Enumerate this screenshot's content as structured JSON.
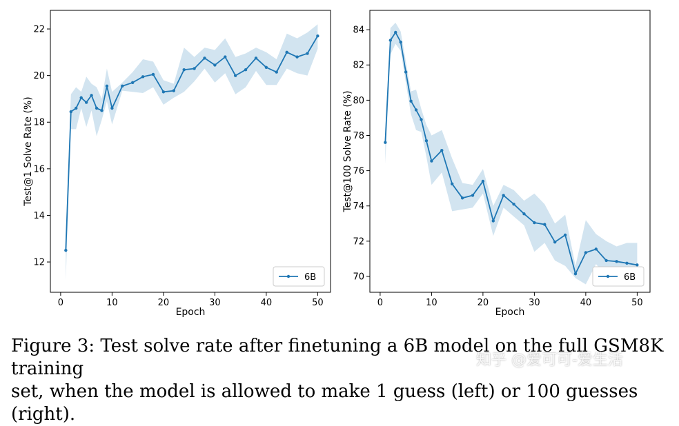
{
  "colors": {
    "line": "#1f77b4",
    "band": "#1f77b4"
  },
  "chart_data": [
    {
      "type": "line",
      "xlabel": "Epoch",
      "ylabel": "Test@1 Solve Rate (%)",
      "xlim": [
        -2,
        52.5
      ],
      "ylim": [
        10.7,
        22.8
      ],
      "xticks": [
        0,
        10,
        20,
        30,
        40,
        50
      ],
      "yticks": [
        12,
        14,
        16,
        18,
        20,
        22
      ],
      "legend_position": "lower right",
      "grid": false,
      "series": [
        {
          "name": "6B",
          "x": [
            1,
            2,
            3,
            4,
            5,
            6,
            7,
            8,
            9,
            10,
            12,
            14,
            16,
            18,
            20,
            22,
            24,
            26,
            28,
            30,
            32,
            34,
            36,
            38,
            40,
            42,
            44,
            46,
            48,
            50
          ],
          "values": [
            12.5,
            18.45,
            18.6,
            19.05,
            18.85,
            19.15,
            18.6,
            18.5,
            19.55,
            18.6,
            19.55,
            19.7,
            19.95,
            20.05,
            19.3,
            19.35,
            20.25,
            20.3,
            20.75,
            20.45,
            20.8,
            20.0,
            20.25,
            20.75,
            20.35,
            20.15,
            21.0,
            20.8,
            20.95,
            21.7
          ],
          "lower": [
            11.2,
            17.7,
            17.7,
            18.6,
            17.8,
            18.5,
            17.4,
            18.1,
            18.9,
            17.9,
            19.35,
            19.3,
            19.25,
            19.5,
            18.75,
            19.05,
            19.3,
            19.75,
            20.3,
            19.7,
            20.1,
            19.2,
            19.5,
            20.2,
            19.6,
            19.6,
            20.3,
            20.1,
            20.0,
            21.15
          ],
          "upper": [
            13.2,
            19.2,
            19.5,
            19.3,
            19.95,
            19.65,
            19.5,
            19.0,
            20.3,
            19.3,
            19.7,
            20.15,
            20.7,
            20.6,
            19.8,
            19.65,
            21.2,
            20.8,
            21.2,
            21.1,
            21.6,
            20.8,
            20.95,
            21.2,
            21.0,
            20.7,
            21.8,
            21.6,
            21.85,
            22.2
          ]
        }
      ]
    },
    {
      "type": "line",
      "xlabel": "Epoch",
      "ylabel": "Test@100 Solve Rate (%)",
      "xlim": [
        -2,
        52.5
      ],
      "ylim": [
        69.1,
        85.1
      ],
      "xticks": [
        0,
        10,
        20,
        30,
        40,
        50
      ],
      "yticks": [
        70,
        72,
        74,
        76,
        78,
        80,
        82,
        84
      ],
      "legend_position": "lower right",
      "grid": false,
      "series": [
        {
          "name": "6B",
          "x": [
            1,
            2,
            3,
            4,
            5,
            6,
            7,
            8,
            9,
            10,
            12,
            14,
            16,
            18,
            20,
            22,
            24,
            26,
            28,
            30,
            32,
            34,
            36,
            38,
            40,
            42,
            44,
            46,
            48,
            50
          ],
          "values": [
            77.6,
            83.4,
            83.85,
            83.3,
            81.6,
            79.95,
            79.45,
            78.9,
            77.7,
            76.55,
            77.15,
            75.25,
            74.45,
            74.6,
            75.4,
            73.15,
            74.6,
            74.1,
            73.55,
            73.05,
            72.95,
            71.95,
            72.35,
            70.15,
            71.35,
            71.55,
            70.9,
            70.85,
            70.75,
            70.65
          ],
          "lower": [
            76.4,
            82.6,
            83.2,
            82.8,
            81.0,
            79.2,
            78.3,
            78.2,
            76.8,
            75.2,
            75.9,
            73.7,
            73.8,
            73.9,
            74.7,
            72.3,
            73.9,
            73.4,
            72.9,
            71.4,
            71.9,
            70.9,
            70.6,
            69.9,
            69.55,
            70.7,
            70.0,
            69.7,
            69.6,
            69.75
          ],
          "upper": [
            78.4,
            84.1,
            84.4,
            83.9,
            82.2,
            80.5,
            80.6,
            79.5,
            78.6,
            78.0,
            78.3,
            76.7,
            75.3,
            75.2,
            76.1,
            74.0,
            75.2,
            74.9,
            74.3,
            74.7,
            74.1,
            73.0,
            73.5,
            70.6,
            73.2,
            72.4,
            72.0,
            71.7,
            71.9,
            71.9
          ]
        }
      ]
    }
  ],
  "caption": {
    "line1": "Figure 3: Test solve rate after finetuning a 6B model on the full GSM8K training",
    "line2": "set, when the model is allowed to make 1 guess (left) or 100 guesses (right)."
  },
  "watermark": "知乎 @爱可可-爱生活"
}
